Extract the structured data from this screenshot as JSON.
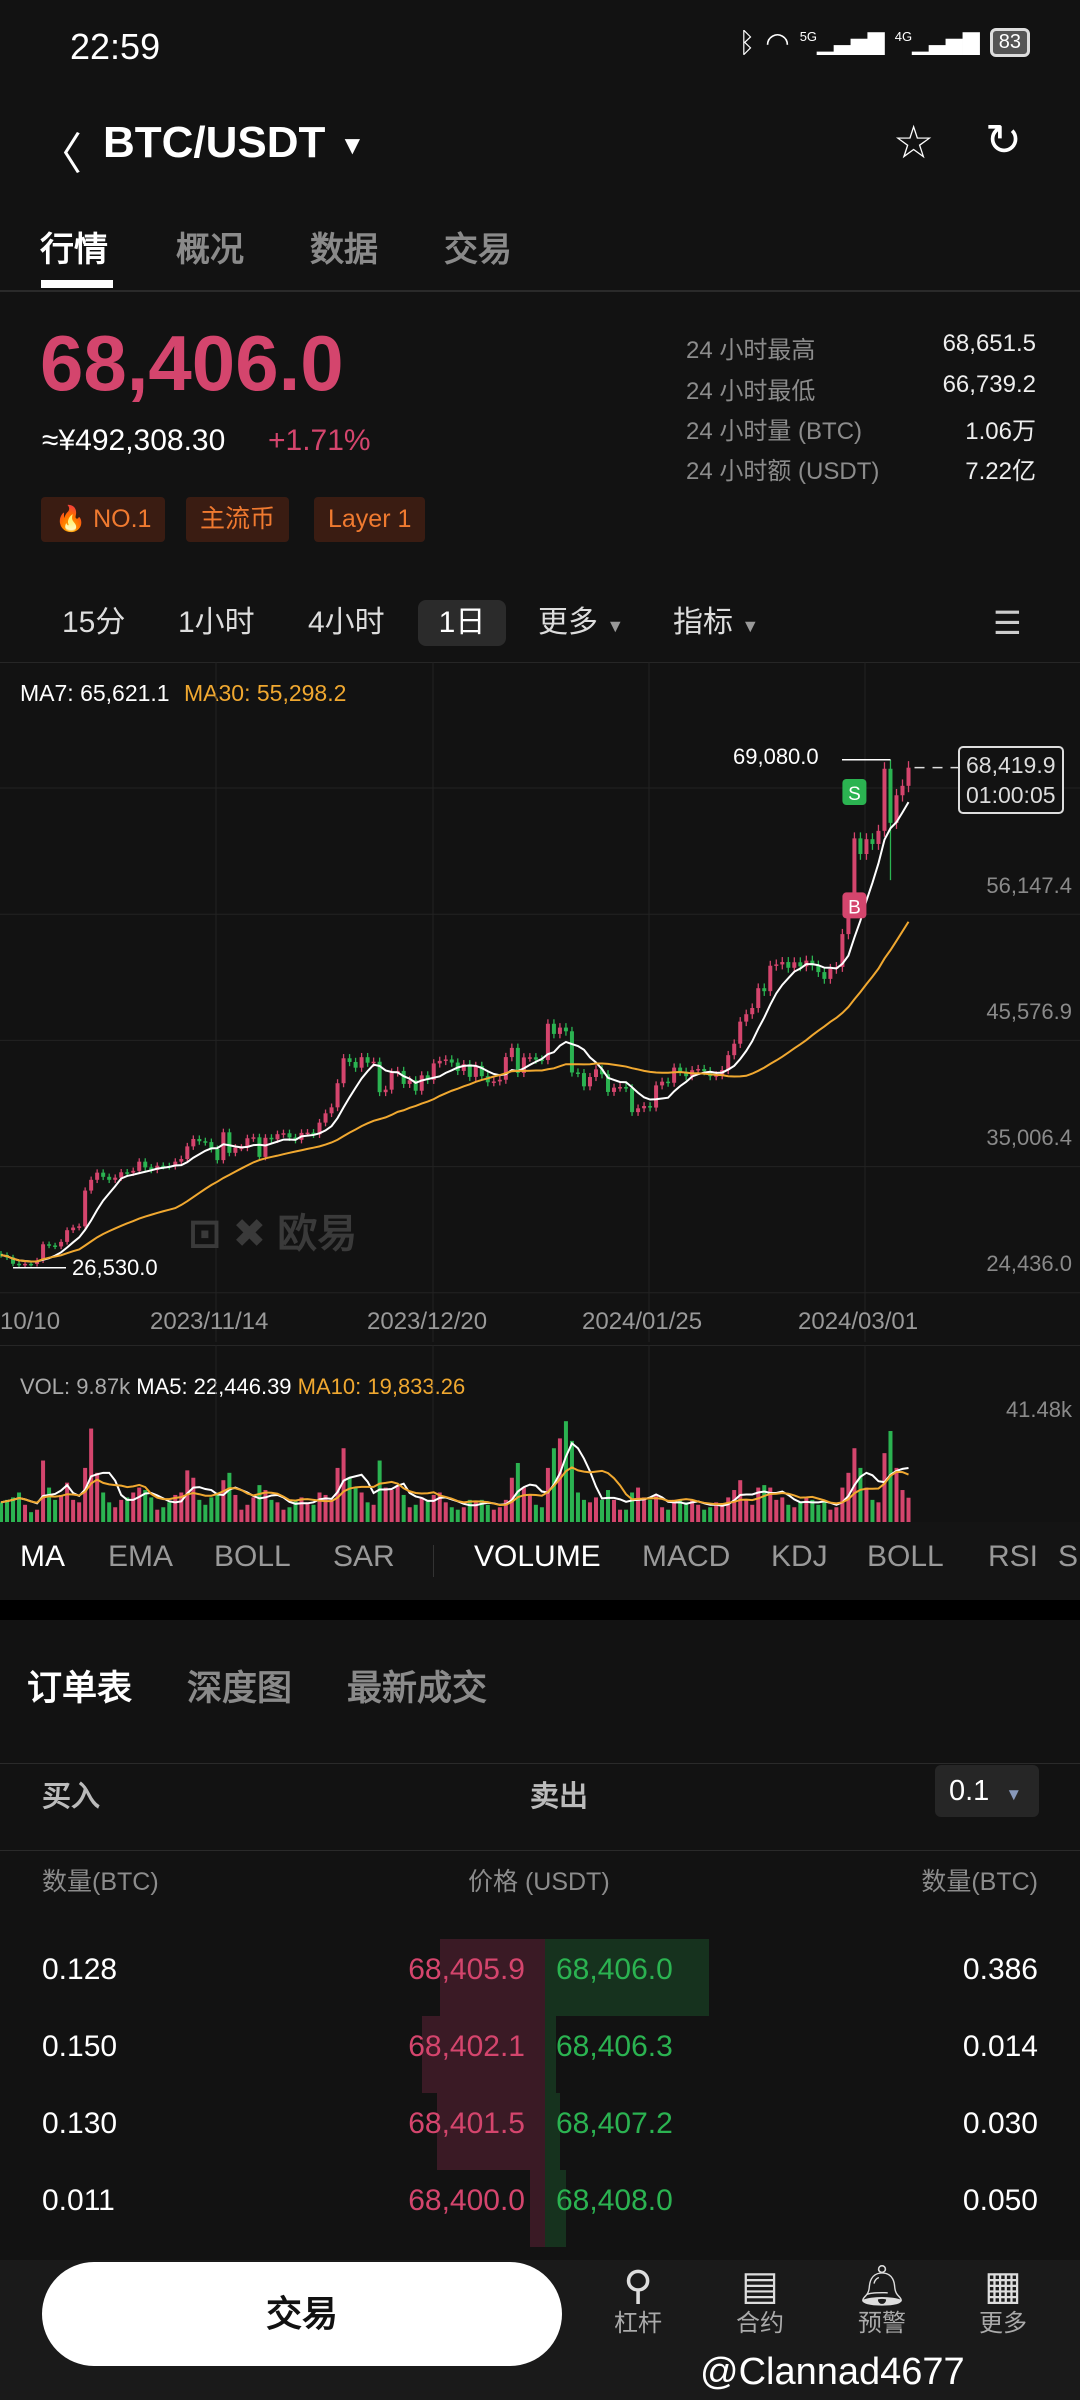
{
  "status_bar": {
    "time": "22:59",
    "network_5g": "5G",
    "network_4g": "4G",
    "battery": "83"
  },
  "header": {
    "pair": "BTC/USDT"
  },
  "tabs": [
    {
      "label": "行情",
      "active": true
    },
    {
      "label": "概况"
    },
    {
      "label": "数据"
    },
    {
      "label": "交易"
    }
  ],
  "ticker": {
    "price": "68,406.0",
    "cny": "≈¥492,308.30",
    "change": "+1.71%",
    "tags": [
      "NO.1",
      "主流币",
      "Layer 1"
    ],
    "stats": [
      {
        "label": "24 小时最高",
        "value": "68,651.5"
      },
      {
        "label": "24 小时最低",
        "value": "66,739.2"
      },
      {
        "label": "24 小时量 (BTC)",
        "value": "1.06万"
      },
      {
        "label": "24 小时额 (USDT)",
        "value": "7.22亿"
      }
    ]
  },
  "timeframes": [
    "15分",
    "1小时",
    "4小时",
    "1日",
    "更多",
    "指标"
  ],
  "timeframe_selected": "1日",
  "colors": {
    "up": "#d4456d",
    "down": "#2bb351",
    "ma7": "#ffffff",
    "ma30": "#f0a830",
    "tag_text": "#f07a30"
  },
  "chart_data": {
    "type": "candlestick",
    "legend": {
      "ma7": "MA7: 65,621.1",
      "ma30": "MA30: 55,298.2"
    },
    "start_date": "2023-10-09",
    "closes": [
      27600,
      27400,
      26870,
      26750,
      26860,
      26850,
      27150,
      28500,
      28400,
      28320,
      28700,
      29680,
      29900,
      30000,
      33000,
      33900,
      34500,
      34150,
      33900,
      34080,
      34530,
      34500,
      34650,
      35420,
      34940,
      34730,
      35080,
      35050,
      35040,
      35420,
      35640,
      36700,
      37320,
      37130,
      37060,
      36480,
      35550,
      37880,
      36160,
      36590,
      36590,
      37380,
      37460,
      35820,
      37420,
      37290,
      37720,
      37800,
      37450,
      37250,
      37830,
      37850,
      37710,
      38690,
      39470,
      39970,
      41990,
      44080,
      43770,
      43290,
      44170,
      43710,
      43790,
      41240,
      41450,
      42890,
      43020,
      41930,
      42240,
      41360,
      42650,
      42270,
      43650,
      43860,
      43980,
      43720,
      43020,
      43580,
      42520,
      43440,
      42580,
      42070,
      42140,
      42280,
      44180,
      44950,
      42850,
      44150,
      44160,
      43970,
      43930,
      46970,
      46120,
      46650,
      46340,
      42890,
      42840,
      41730,
      42510,
      43150,
      42740,
      41260,
      41620,
      41670,
      41580,
      39570,
      39890,
      40080,
      39950,
      41810,
      42120,
      42030,
      43300,
      42950,
      42580,
      43080,
      43180,
      43000,
      42580,
      42660,
      43090,
      44340,
      45300,
      47150,
      47770,
      48290,
      49950,
      49700,
      51830,
      51940,
      52140,
      51660,
      52120,
      51780,
      52260,
      51850,
      51300,
      50730,
      51570,
      51730,
      54480,
      57090,
      62500,
      61190,
      62430,
      62030,
      63130,
      68330,
      63800,
      66110,
      66900,
      68419.9
    ],
    "extremes": {
      "high": {
        "date": "2024-03-05",
        "value": 69080.0,
        "label": "69,080.0"
      },
      "low": {
        "date": "2023-10-12",
        "value": 26530.0,
        "label": "26,530.0"
      },
      "low_2024_03_05": 59000
    },
    "last_price_tag": {
      "price": "68,419.9",
      "countdown": "01:00:05"
    },
    "y_ticks": [
      "56,147.4",
      "45,576.9",
      "35,006.4",
      "24,436.0"
    ],
    "y_tick_values": [
      66717.9,
      56147.4,
      45576.9,
      35006.4,
      24436.0
    ],
    "x_ticks": [
      "10/10",
      "2023/11/14",
      "2023/12/20",
      "2024/01/25",
      "2024/03/01"
    ],
    "markers": [
      {
        "label": "S",
        "date": "2024-02-28",
        "price": 66300
      },
      {
        "label": "B",
        "date": "2024-02-28",
        "price": 56800
      }
    ],
    "watermark": "欧易",
    "volume": {
      "legend": {
        "vol": "VOL: 9.87k",
        "ma5": "MA5: 22,446.39",
        "ma10": "MA10: 19,833.26"
      },
      "max_label": "41.48k",
      "max": 41.48,
      "unit": "k",
      "values": [
        8,
        9,
        10,
        12,
        7,
        4,
        5,
        25,
        14,
        9,
        11,
        16,
        9,
        8,
        22,
        38,
        20,
        12,
        8,
        6,
        9,
        10,
        12,
        14,
        13,
        10,
        5,
        6,
        8,
        11,
        12,
        21,
        18,
        9,
        7,
        10,
        12,
        17,
        20,
        11,
        5,
        7,
        10,
        15,
        13,
        9,
        8,
        5,
        6,
        9,
        10,
        8,
        7,
        12,
        11,
        9,
        22,
        30,
        18,
        14,
        12,
        8,
        7,
        25,
        14,
        13,
        15,
        11,
        6,
        7,
        10,
        9,
        11,
        12,
        8,
        6,
        5,
        6,
        9,
        8,
        9,
        7,
        5,
        6,
        9,
        18,
        24,
        14,
        11,
        7,
        6,
        22,
        30,
        34,
        41,
        33,
        12,
        9,
        8,
        10,
        9,
        13,
        9,
        5,
        5,
        12,
        14,
        10,
        9,
        11,
        6,
        5,
        9,
        9,
        8,
        9,
        7,
        5,
        6,
        8,
        7,
        10,
        13,
        17,
        9,
        7,
        14,
        15,
        14,
        9,
        10,
        7,
        6,
        8,
        10,
        9,
        7,
        8,
        5,
        6,
        14,
        20,
        30,
        22,
        14,
        9,
        8,
        28,
        37,
        22,
        13,
        9.87
      ]
    }
  },
  "indicators": {
    "main": [
      "MA",
      "EMA",
      "BOLL",
      "SAR"
    ],
    "sub": [
      "VOLUME",
      "MACD",
      "KDJ",
      "BOLL",
      "RSI",
      "S"
    ]
  },
  "orderbook": {
    "tabs": [
      "订单表",
      "深度图",
      "最新成交"
    ],
    "buy_label": "买入",
    "sell_label": "卖出",
    "precision": "0.1",
    "headers": {
      "bid_qty": "数量(BTC)",
      "price": "价格 (USDT)",
      "ask_qty": "数量(BTC)"
    },
    "rows": [
      {
        "bid_qty": "0.128",
        "bid": "68,405.9",
        "ask": "68,406.0",
        "ask_qty": "0.386",
        "bid_depth": 0.35,
        "ask_depth": 0.78
      },
      {
        "bid_qty": "0.150",
        "bid": "68,402.1",
        "ask": "68,406.3",
        "ask_qty": "0.014",
        "bid_depth": 0.41,
        "ask_depth": 0.05
      },
      {
        "bid_qty": "0.130",
        "bid": "68,401.5",
        "ask": "68,407.2",
        "ask_qty": "0.030",
        "bid_depth": 0.36,
        "ask_depth": 0.07
      },
      {
        "bid_qty": "0.011",
        "bid": "68,400.0",
        "ask": "68,408.0",
        "ask_qty": "0.050",
        "bid_depth": 0.05,
        "ask_depth": 0.1
      }
    ]
  },
  "bottom_bar": {
    "trade": "交易",
    "items": [
      {
        "label": "杠杆"
      },
      {
        "label": "合约"
      },
      {
        "label": "预警"
      },
      {
        "label": "更多"
      }
    ]
  },
  "watermark_user": "@Clannad4677"
}
